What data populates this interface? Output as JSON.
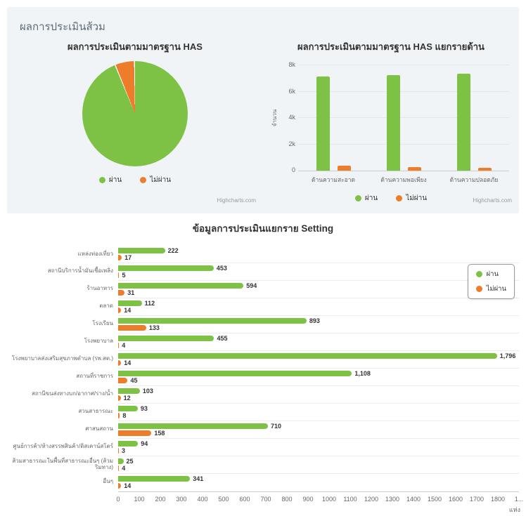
{
  "page": {
    "header": "ผลการประเมินส้วม"
  },
  "colors": {
    "pass": "#7dc244",
    "fail": "#ed7d2b",
    "grid": "#e6e6e6",
    "axis_line": "#cccccc",
    "card_bg": "#f1f4f6",
    "header_text": "#5a6b7b"
  },
  "legend": {
    "pass": "ผ่าน",
    "fail": "ไม่ผ่าน"
  },
  "credit": "Highcharts.com",
  "chart_data": [
    {
      "type": "pie",
      "title": "ผลการประเมินตามมาตรฐาน HAS",
      "series": [
        {
          "name": "ผ่าน",
          "value": 94,
          "color": "#7dc244"
        },
        {
          "name": "ไม่ผ่าน",
          "value": 6,
          "color": "#ed7d2b"
        }
      ],
      "value_unit": "percent-estimated",
      "legend_position": "bottom"
    },
    {
      "type": "bar",
      "title": "ผลการประเมินตามมาตรฐาน HAS แยกรายด้าน",
      "categories": [
        "ด้านความสะอาด",
        "ด้านความพอเพียง",
        "ด้านความปลอดภัย"
      ],
      "series": [
        {
          "name": "ผ่าน",
          "color": "#7dc244",
          "values": [
            7150,
            7250,
            7350
          ]
        },
        {
          "name": "ไม่ผ่าน",
          "color": "#ed7d2b",
          "values": [
            350,
            260,
            200
          ]
        }
      ],
      "values_estimated": true,
      "ylabel": "จำนวน",
      "ylim": [
        0,
        8000
      ],
      "ytick_values": [
        0,
        2000,
        4000,
        6000,
        8000
      ],
      "ytick_labels": [
        "0",
        "2k",
        "4k",
        "6k",
        "8k"
      ],
      "grid": true,
      "legend_position": "bottom"
    },
    {
      "type": "bar",
      "orientation": "horizontal",
      "title": "ข้อมูลการประเมินแยกราย Setting",
      "categories": [
        "แหล่งท่องเที่ยว",
        "สถานีบริการน้ำมันเชื้อเพลิง",
        "ร้านอาหาร",
        "ตลาด",
        "โรงเรียน",
        "โรงพยาบาล",
        "โรงพยาบาลส่งเสริมสุขภาพตำบล (รพ.สต.)",
        "สถานที่ราชการ",
        "สถานีขนส่งทางบก/อากาศ/ราง/น้ำ",
        "สวนสาธารณะ",
        "ศาสนสถาน",
        "ศูนย์การค้า/ห้างสรรพสินค้า/ดิสเคาน์สโตร์",
        "ส้วมสาธารณะในพื้นที่สาธารณะอื่นๆ (ส้วมริมทาง)",
        "อื่นๆ"
      ],
      "series": [
        {
          "name": "ผ่าน",
          "color": "#7dc244",
          "values": [
            222,
            453,
            594,
            112,
            893,
            455,
            1796,
            1108,
            103,
            93,
            710,
            94,
            25,
            341
          ]
        },
        {
          "name": "ไม่ผ่าน",
          "color": "#ed7d2b",
          "values": [
            17,
            5,
            31,
            14,
            133,
            4,
            14,
            45,
            12,
            8,
            158,
            3,
            4,
            14
          ]
        }
      ],
      "xlim": [
        0,
        1900
      ],
      "xtick_step": 100,
      "xtick_labels": [
        "0",
        "100",
        "200",
        "300",
        "400",
        "500",
        "600",
        "700",
        "800",
        "900",
        "1000",
        "1100",
        "1200",
        "1300",
        "1400",
        "1500",
        "1600",
        "1700",
        "1800",
        "1..."
      ],
      "xunit": "แห่ง",
      "grid": false,
      "legend_position": "right"
    }
  ]
}
